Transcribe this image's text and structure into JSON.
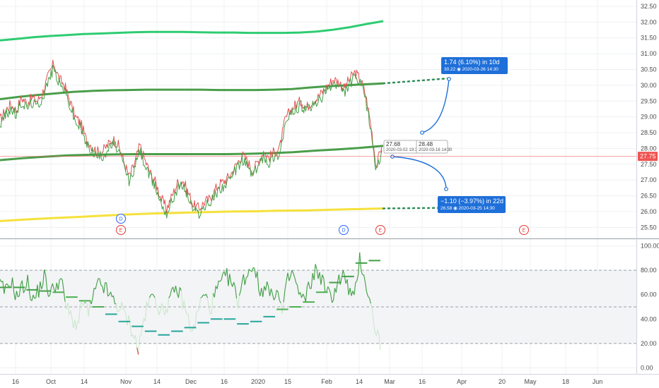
{
  "chart_data": [
    {
      "type": "line",
      "panel": "price",
      "ylim": [
        25.15,
        32.7
      ],
      "y_ticks": [
        "32.50",
        "32.00",
        "31.50",
        "31.00",
        "30.50",
        "30.00",
        "29.50",
        "29.00",
        "28.50",
        "28.00",
        "27.50",
        "27.00",
        "26.50",
        "26.00",
        "25.50"
      ],
      "x_ticks": [
        "16",
        "Oct",
        "14",
        "Nov",
        "14",
        "Dec",
        "16",
        "2020",
        "15",
        "Feb",
        "14",
        "Mar",
        "16",
        "Apr",
        "20",
        "May",
        "18",
        "Jun"
      ],
      "last_price": "27.75",
      "last_price_color": "#ef5350",
      "moving_averages": [
        {
          "color": "#2ecc71",
          "values": [
            31.42,
            31.47,
            31.52,
            31.56,
            31.59,
            31.62,
            31.64,
            31.66,
            31.68,
            31.69,
            31.69,
            31.69,
            31.68,
            31.67,
            31.67,
            31.66,
            31.66,
            31.66,
            31.67,
            31.7,
            31.76,
            31.84,
            31.94,
            32.03
          ]
        },
        {
          "color": "#4a9e4a",
          "values": [
            29.56,
            29.63,
            29.69,
            29.74,
            29.79,
            29.82,
            29.84,
            29.85,
            29.86,
            29.86,
            29.86,
            29.86,
            29.85,
            29.85,
            29.85,
            29.86,
            29.88,
            29.93,
            29.97,
            30.0,
            30.03,
            30.06
          ]
        },
        {
          "color": "#4a9e4a",
          "values": [
            27.63,
            27.69,
            27.74,
            27.78,
            27.8,
            27.81,
            27.82,
            27.82,
            27.82,
            27.82,
            27.82,
            27.83,
            27.85,
            27.88,
            27.93,
            27.97,
            28.02,
            28.08
          ]
        },
        {
          "color": "#f5e13a",
          "values": [
            25.7,
            25.75,
            25.79,
            25.83,
            25.87,
            25.91,
            25.94,
            25.96,
            25.98,
            26.0,
            26.01,
            26.03,
            26.04,
            26.06,
            26.08,
            26.1
          ]
        }
      ],
      "price_series": [
        {
          "name": "",
          "color": "#e05252",
          "values": [
            28.9,
            29.2,
            29.4,
            29.2,
            29.6,
            29.45,
            29.6,
            29.5,
            29.8,
            30.3,
            30.7,
            30.2,
            30.0,
            29.5,
            29.0,
            28.8,
            28.3,
            28.1,
            27.9,
            27.9,
            28.1,
            28.3,
            28.1,
            27.6,
            27.1,
            27.5,
            28.1,
            27.6,
            27.2,
            26.9,
            26.4,
            26.1,
            26.5,
            26.9,
            27.0,
            26.6,
            26.2,
            26.1,
            26.3,
            26.4,
            26.7,
            26.9,
            27.0,
            27.2,
            27.5,
            27.8,
            27.6,
            27.3,
            27.6,
            27.9,
            27.7,
            27.9,
            28.0,
            28.9,
            29.2,
            29.4,
            29.5,
            29.3,
            29.5,
            29.6,
            29.8,
            30.0,
            30.2,
            30.1,
            29.9,
            30.2,
            30.4,
            30.2,
            29.7,
            28.7,
            27.4,
            28.1
          ]
        },
        {
          "name": "",
          "color": "#43a047",
          "values": [
            28.75,
            29.05,
            29.25,
            29.05,
            29.45,
            29.3,
            29.45,
            29.35,
            29.65,
            30.15,
            30.55,
            30.05,
            29.85,
            29.35,
            28.85,
            28.65,
            28.15,
            27.95,
            27.75,
            27.75,
            27.95,
            28.15,
            27.95,
            27.45,
            26.95,
            27.35,
            27.95,
            27.45,
            27.05,
            26.75,
            26.25,
            25.95,
            26.35,
            26.75,
            26.85,
            26.45,
            26.05,
            25.95,
            26.15,
            26.25,
            26.55,
            26.75,
            26.85,
            27.05,
            27.35,
            27.65,
            27.45,
            27.15,
            27.45,
            27.75,
            27.55,
            27.75,
            27.85,
            28.75,
            29.05,
            29.25,
            29.35,
            29.15,
            29.35,
            29.45,
            29.65,
            29.85,
            30.05,
            29.95,
            29.75,
            30.05,
            30.25,
            30.05,
            29.55,
            28.55,
            27.25,
            27.95
          ]
        }
      ],
      "annotations": [
        {
          "title": "1.74 (6.10%) in 10d",
          "sub": "30.22 ◉ 2020-03-26  14:30"
        },
        {
          "title": "−1.10 (−3.97%) in 22d 19h",
          "sub": "26.58 ◉ 2020-03-25  14:30"
        }
      ],
      "point_notes": [
        {
          "main": "27.68",
          "sub": "2020-03-02 19:30"
        },
        {
          "main": "28.48",
          "sub": "2020-03-16 14:30"
        }
      ],
      "event_badges": [
        "D",
        "E",
        "D",
        "E",
        "E"
      ]
    },
    {
      "type": "line",
      "panel": "oscillator",
      "ylim": [
        -5,
        105
      ],
      "y_ticks": [
        "100.00",
        "80.00",
        "60.00",
        "40.00",
        "20.00",
        "0.00"
      ],
      "levels": [
        80,
        50,
        20
      ],
      "series": [
        {
          "name": "",
          "color": "#43a047",
          "values": [
            68,
            62,
            72,
            58,
            66,
            70,
            55,
            64,
            75,
            60,
            68,
            72,
            50,
            40,
            35,
            55,
            45,
            60,
            70,
            65,
            58,
            52,
            48,
            40,
            30,
            15,
            40,
            55,
            60,
            45,
            50,
            58,
            65,
            55,
            40,
            30,
            52,
            60,
            48,
            62,
            70,
            75,
            68,
            55,
            72,
            80,
            85,
            60,
            70,
            58,
            65,
            45,
            72,
            78,
            60,
            55,
            68,
            80,
            75,
            62,
            58,
            70,
            76,
            65,
            55,
            90,
            72,
            50,
            30,
            15
          ]
        }
      ],
      "steps": [
        {
          "color": "#43a047",
          "values": [
            66,
            66,
            64,
            63,
            62,
            58,
            55,
            50,
            44,
            38,
            34,
            30,
            27,
            30,
            33,
            37,
            40,
            40,
            36,
            38,
            42,
            48,
            50,
            54,
            62,
            70,
            75,
            86,
            88
          ]
        }
      ]
    }
  ]
}
